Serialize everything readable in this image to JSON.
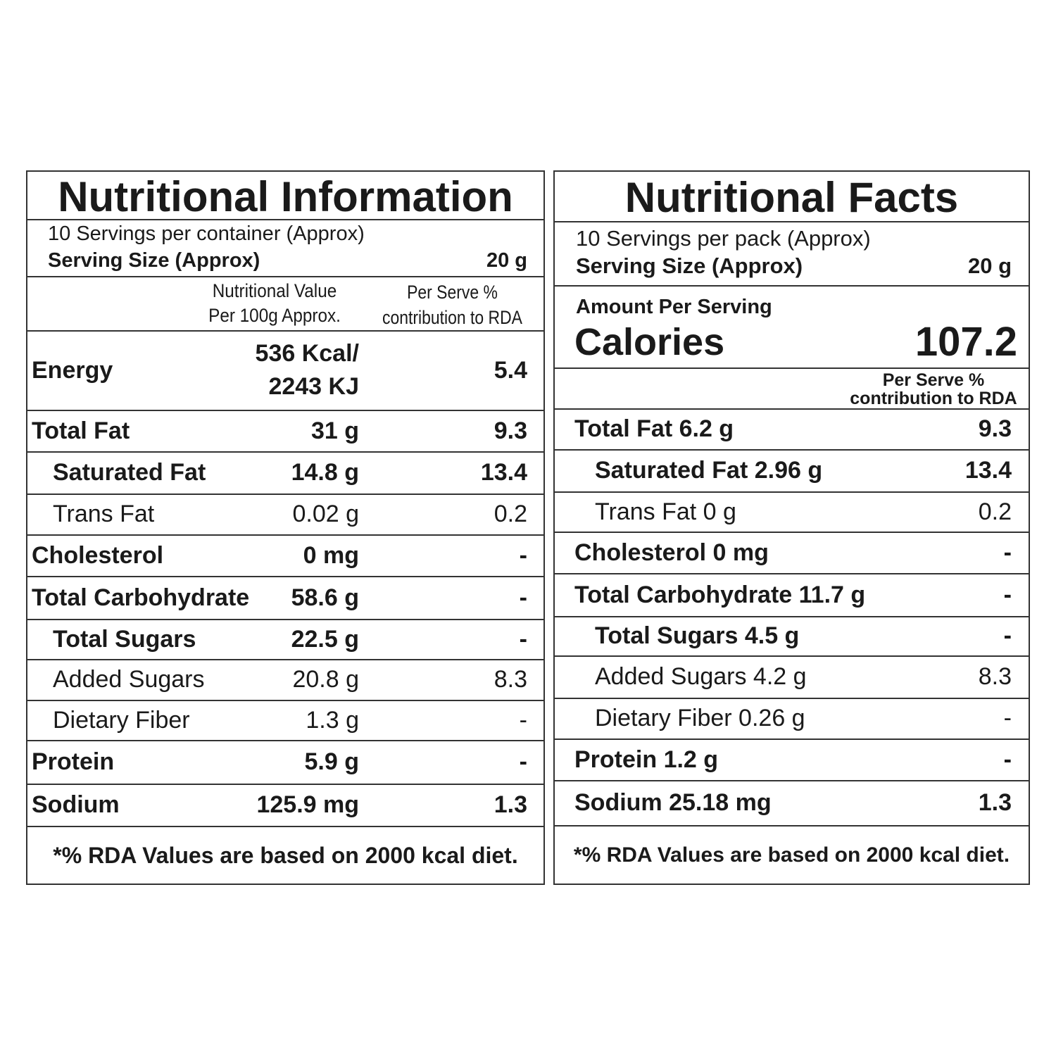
{
  "left": {
    "title": "Nutritional Information",
    "servings": "10 Servings per container (Approx)",
    "serving_size_label": "Serving Size (Approx)",
    "serving_size_value": "20 g",
    "header": {
      "value_lines": [
        "Nutritional Value",
        "Per 100g Approx."
      ],
      "rda_lines": [
        "Per Serve %",
        "contribution to RDA"
      ]
    },
    "rows": [
      {
        "name": "Energy",
        "value": [
          "536 Kcal/",
          "2243 KJ"
        ],
        "rda": "5.4"
      },
      {
        "name": "Total Fat",
        "value": "31 g",
        "rda": "9.3"
      },
      {
        "name": "Saturated Fat",
        "value": "14.8 g",
        "rda": "13.4"
      },
      {
        "name": "Trans Fat",
        "value": "0.02 g",
        "rda": "0.2"
      },
      {
        "name": "Cholesterol",
        "value": "0 mg",
        "rda": "-"
      },
      {
        "name": "Total Carbohydrate",
        "value": "58.6 g",
        "rda": "-"
      },
      {
        "name": "Total Sugars",
        "value": "22.5 g",
        "rda": "-"
      },
      {
        "name": "Added Sugars",
        "value": "20.8 g",
        "rda": "8.3"
      },
      {
        "name": "Dietary Fiber",
        "value": "1.3 g",
        "rda": "-"
      },
      {
        "name": "Protein",
        "value": "5.9 g",
        "rda": "-"
      },
      {
        "name": "Sodium",
        "value": "125.9 mg",
        "rda": "1.3"
      }
    ],
    "footnote": "*% RDA Values are based on 2000 kcal diet."
  },
  "right": {
    "title": "Nutritional Facts",
    "servings": "10 Servings per pack (Approx)",
    "serving_size_label": "Serving Size (Approx)",
    "serving_size_value": "20 g",
    "amount_label": "Amount Per Serving",
    "calories_label": "Calories",
    "calories_value": "107.2",
    "header": {
      "rda_lines": [
        "Per Serve %",
        "contribution to RDA"
      ]
    },
    "rows": [
      {
        "name": "Total Fat 6.2 g",
        "rda": "9.3"
      },
      {
        "name": "Saturated Fat 2.96 g",
        "rda": "13.4"
      },
      {
        "name": "Trans Fat 0 g",
        "rda": "0.2"
      },
      {
        "name": "Cholesterol 0 mg",
        "rda": "-"
      },
      {
        "name": "Total Carbohydrate 11.7 g",
        "rda": "-"
      },
      {
        "name": "Total Sugars 4.5 g",
        "rda": "-"
      },
      {
        "name": "Added Sugars 4.2 g",
        "rda": "8.3"
      },
      {
        "name": "Dietary Fiber 0.26 g",
        "rda": "-"
      },
      {
        "name": "Protein 1.2 g",
        "rda": "-"
      },
      {
        "name": "Sodium 25.18 mg",
        "rda": "1.3"
      }
    ],
    "footnote": "*% RDA Values are based on 2000 kcal diet."
  }
}
